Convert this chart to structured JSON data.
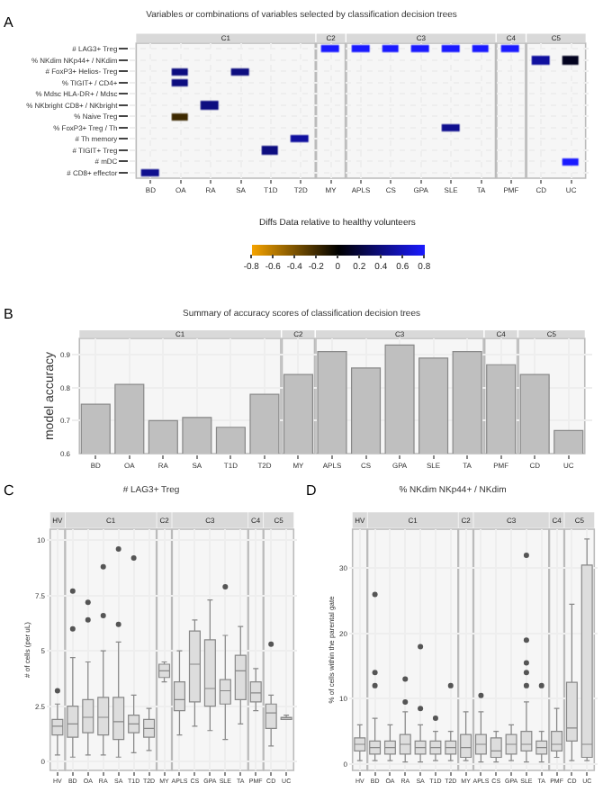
{
  "chart_data": [
    {
      "type": "heatmap",
      "title": "Variables or combinations of variables selected by classification decision trees",
      "annotations": [
        "A"
      ],
      "categories": [
        "BD",
        "OA",
        "RA",
        "SA",
        "T1D",
        "T2D",
        "MY",
        "APLS",
        "CS",
        "GPA",
        "SLE",
        "TA",
        "PMF",
        "CD",
        "UC"
      ],
      "y_categories": [
        "# LAG3+ Treg",
        "% NKdim NKp44+ / NKdim",
        "# FoxP3+ Helios- Treg",
        "% TIGIT+ / CD4+",
        "% Mdsc HLA-DR+ / Mdsc",
        "% NKbright CD8+ / NKbright",
        "% Naive Treg",
        "% FoxP3+ Treg / Th",
        "# Th memory",
        "# TIGIT+ Treg",
        "# mDC",
        "# CD8+ effector"
      ],
      "cells": [
        [
          null,
          null,
          null,
          null,
          null,
          null,
          0.8,
          0.8,
          0.8,
          0.8,
          0.8,
          0.8,
          0.8,
          null,
          null
        ],
        [
          null,
          null,
          null,
          null,
          null,
          null,
          null,
          null,
          null,
          null,
          null,
          null,
          null,
          0.5,
          0.1
        ],
        [
          null,
          0.4,
          null,
          0.4,
          null,
          null,
          null,
          null,
          null,
          null,
          null,
          null,
          null,
          null,
          null
        ],
        [
          null,
          0.4,
          null,
          null,
          null,
          null,
          null,
          null,
          null,
          null,
          null,
          null,
          null,
          null,
          null
        ],
        [
          null,
          null,
          null,
          null,
          null,
          null,
          null,
          null,
          null,
          null,
          null,
          null,
          null,
          null,
          null
        ],
        [
          null,
          null,
          0.4,
          null,
          null,
          null,
          null,
          null,
          null,
          null,
          null,
          null,
          null,
          null,
          null
        ],
        [
          null,
          -0.2,
          null,
          null,
          null,
          null,
          null,
          null,
          null,
          null,
          null,
          null,
          null,
          null,
          null
        ],
        [
          null,
          null,
          null,
          null,
          null,
          null,
          null,
          null,
          null,
          null,
          0.45,
          null,
          null,
          null,
          null
        ],
        [
          null,
          null,
          null,
          null,
          null,
          0.5,
          null,
          null,
          null,
          null,
          null,
          null,
          null,
          null,
          null
        ],
        [
          null,
          null,
          null,
          null,
          0.4,
          null,
          null,
          null,
          null,
          null,
          null,
          null,
          null,
          null,
          null
        ],
        [
          null,
          null,
          null,
          null,
          null,
          null,
          null,
          null,
          null,
          null,
          null,
          null,
          null,
          null,
          0.8
        ],
        [
          0.45,
          null,
          null,
          null,
          null,
          null,
          null,
          null,
          null,
          null,
          null,
          null,
          null,
          null,
          null
        ]
      ],
      "clabel": "Diffs Data relative to healthy volunteers",
      "clim": [
        -0.8,
        0.8
      ],
      "cticks": [
        -0.8,
        -0.6,
        -0.4,
        -0.2,
        0,
        0.2,
        0.4,
        0.6,
        0.8
      ],
      "grid": true,
      "legend": false,
      "bands": [
        {
          "axis": "x",
          "from": "BD",
          "to": "T2D",
          "label": "C1"
        },
        {
          "axis": "x",
          "from": "MY",
          "to": "MY",
          "label": "C2"
        },
        {
          "axis": "x",
          "from": "APLS",
          "to": "TA",
          "label": "C3"
        },
        {
          "axis": "x",
          "from": "PMF",
          "to": "PMF",
          "label": "C4"
        },
        {
          "axis": "x",
          "from": "CD",
          "to": "UC",
          "label": "C5"
        }
      ]
    },
    {
      "type": "bar",
      "title": "Summary of accuracy scores of classification decision trees",
      "ylabel": "model accuracy",
      "annotations": [
        "B"
      ],
      "categories": [
        "BD",
        "OA",
        "RA",
        "SA",
        "T1D",
        "T2D",
        "MY",
        "APLS",
        "CS",
        "GPA",
        "SLE",
        "TA",
        "PMF",
        "CD",
        "UC"
      ],
      "values": [
        0.75,
        0.81,
        0.7,
        0.71,
        0.68,
        0.78,
        0.84,
        0.91,
        0.86,
        0.93,
        0.89,
        0.91,
        0.87,
        0.84,
        0.67
      ],
      "color": "#bfbfbf",
      "ylim": [
        0.6,
        0.95
      ],
      "yticks": [
        0.6,
        0.7,
        0.8,
        0.9
      ],
      "grid": true,
      "legend": false,
      "bands": [
        {
          "axis": "x",
          "from": "BD",
          "to": "T2D",
          "label": "C1"
        },
        {
          "axis": "x",
          "from": "MY",
          "to": "MY",
          "label": "C2"
        },
        {
          "axis": "x",
          "from": "APLS",
          "to": "TA",
          "label": "C3"
        },
        {
          "axis": "x",
          "from": "PMF",
          "to": "PMF",
          "label": "C4"
        },
        {
          "axis": "x",
          "from": "CD",
          "to": "UC",
          "label": "C5"
        }
      ]
    },
    {
      "type": "box",
      "title": "# LAG3+ Treg",
      "ylabel": "# of cells (per uL)",
      "annotations": [
        "C"
      ],
      "categories": [
        "HV",
        "BD",
        "OA",
        "RA",
        "SA",
        "T1D",
        "T2D",
        "MY",
        "APLS",
        "CS",
        "GPA",
        "SLE",
        "TA",
        "PMF",
        "CD",
        "UC"
      ],
      "color": "#dddddd",
      "boxes": [
        {
          "low": 0.3,
          "q1": 1.2,
          "median": 1.6,
          "q3": 1.9,
          "high": 2.6,
          "outliers": [
            3.2
          ]
        },
        {
          "low": 0.2,
          "q1": 1.1,
          "median": 1.7,
          "q3": 2.5,
          "high": 4.7,
          "outliers": [
            6.0,
            7.7
          ]
        },
        {
          "low": 0.3,
          "q1": 1.3,
          "median": 2.0,
          "q3": 2.8,
          "high": 4.5,
          "outliers": [
            6.4,
            7.2
          ]
        },
        {
          "low": 0.3,
          "q1": 1.2,
          "median": 2.0,
          "q3": 2.9,
          "high": 5.0,
          "outliers": [
            6.6,
            8.8
          ]
        },
        {
          "low": 0.2,
          "q1": 1.0,
          "median": 1.8,
          "q3": 2.9,
          "high": 5.4,
          "outliers": [
            6.2,
            9.6
          ]
        },
        {
          "low": 0.4,
          "q1": 1.3,
          "median": 1.7,
          "q3": 2.1,
          "high": 3.0,
          "outliers": [
            9.2
          ]
        },
        {
          "low": 0.5,
          "q1": 1.1,
          "median": 1.5,
          "q3": 1.9,
          "high": 2.4
        },
        {
          "low": 3.6,
          "q1": 3.8,
          "median": 4.1,
          "q3": 4.4,
          "high": 4.5
        },
        {
          "low": 1.2,
          "q1": 2.3,
          "median": 2.8,
          "q3": 3.6,
          "high": 5.0
        },
        {
          "low": 1.6,
          "q1": 2.7,
          "median": 4.4,
          "q3": 5.9,
          "high": 6.4
        },
        {
          "low": 1.4,
          "q1": 2.5,
          "median": 3.3,
          "q3": 5.5,
          "high": 7.3
        },
        {
          "low": 1.0,
          "q1": 2.6,
          "median": 3.2,
          "q3": 3.7,
          "high": 5.7,
          "outliers": [
            7.9
          ]
        },
        {
          "low": 1.7,
          "q1": 2.8,
          "median": 4.1,
          "q3": 4.8,
          "high": 6.1
        },
        {
          "low": 2.3,
          "q1": 2.7,
          "median": 3.1,
          "q3": 3.6,
          "high": 4.2
        },
        {
          "low": 0.7,
          "q1": 1.5,
          "median": 2.2,
          "q3": 2.6,
          "high": 3.0,
          "outliers": [
            5.3
          ]
        },
        {
          "low": 1.9,
          "q1": 1.9,
          "median": 2.0,
          "q3": 2.0,
          "high": 2.1
        }
      ],
      "ylim": [
        -0.4,
        10.5
      ],
      "yticks": [
        0,
        2.5,
        5,
        7.5,
        10
      ],
      "grid": true,
      "legend": false,
      "bands": [
        {
          "axis": "x",
          "from": "HV",
          "to": "HV",
          "label": "HV"
        },
        {
          "axis": "x",
          "from": "BD",
          "to": "T2D",
          "label": "C1"
        },
        {
          "axis": "x",
          "from": "MY",
          "to": "MY",
          "label": "C2"
        },
        {
          "axis": "x",
          "from": "APLS",
          "to": "TA",
          "label": "C3"
        },
        {
          "axis": "x",
          "from": "PMF",
          "to": "PMF",
          "label": "C4"
        },
        {
          "axis": "x",
          "from": "CD",
          "to": "UC",
          "label": "C5"
        }
      ]
    },
    {
      "type": "box",
      "title": "% NKdim NKp44+ / NKdim",
      "ylabel": "% of cells within the parental gate",
      "annotations": [
        "D"
      ],
      "categories": [
        "HV",
        "BD",
        "OA",
        "RA",
        "SA",
        "T1D",
        "T2D",
        "MY",
        "APLS",
        "CS",
        "GPA",
        "SLE",
        "TA",
        "PMF",
        "CD",
        "UC"
      ],
      "color": "#dddddd",
      "boxes": [
        {
          "low": 0.5,
          "q1": 2,
          "median": 3,
          "q3": 4,
          "high": 6
        },
        {
          "low": 0.5,
          "q1": 1.5,
          "median": 2.5,
          "q3": 3.5,
          "high": 7,
          "outliers": [
            12,
            14,
            26
          ]
        },
        {
          "low": 0.5,
          "q1": 1.5,
          "median": 2.5,
          "q3": 3.5,
          "high": 6
        },
        {
          "low": 0.3,
          "q1": 1.5,
          "median": 3,
          "q3": 4.5,
          "high": 8,
          "outliers": [
            9.5,
            13
          ]
        },
        {
          "low": 0.3,
          "q1": 1.5,
          "median": 2.5,
          "q3": 3.5,
          "high": 6,
          "outliers": [
            8.5,
            18
          ]
        },
        {
          "low": 0.5,
          "q1": 1.5,
          "median": 2.5,
          "q3": 3.5,
          "high": 5,
          "outliers": [
            7
          ]
        },
        {
          "low": 0.5,
          "q1": 1.5,
          "median": 2.5,
          "q3": 3.5,
          "high": 5,
          "outliers": [
            12
          ]
        },
        {
          "low": 0.5,
          "q1": 1,
          "median": 2.5,
          "q3": 4.5,
          "high": 8
        },
        {
          "low": 0.3,
          "q1": 1.5,
          "median": 3,
          "q3": 4.5,
          "high": 8,
          "outliers": [
            10.5
          ]
        },
        {
          "low": 0.3,
          "q1": 1,
          "median": 2,
          "q3": 4,
          "high": 5
        },
        {
          "low": 0.5,
          "q1": 1.5,
          "median": 3,
          "q3": 4.5,
          "high": 6
        },
        {
          "low": 0.3,
          "q1": 2,
          "median": 3,
          "q3": 5,
          "high": 9.5,
          "outliers": [
            12,
            14,
            15.5,
            19,
            32
          ]
        },
        {
          "low": 0.3,
          "q1": 1.5,
          "median": 2.5,
          "q3": 3.5,
          "high": 5,
          "outliers": [
            12
          ]
        },
        {
          "low": 1,
          "q1": 2,
          "median": 3,
          "q3": 5,
          "high": 8.5
        },
        {
          "low": 0.5,
          "q1": 3.5,
          "median": 5.5,
          "q3": 12.5,
          "high": 24.5
        },
        {
          "low": 0.5,
          "q1": 1,
          "median": 3,
          "q3": 30.5,
          "high": 34.5
        }
      ],
      "ylim": [
        -1,
        36
      ],
      "yticks": [
        0,
        10,
        20,
        30
      ],
      "grid": true,
      "legend": false,
      "bands": [
        {
          "axis": "x",
          "from": "HV",
          "to": "HV",
          "label": "HV"
        },
        {
          "axis": "x",
          "from": "BD",
          "to": "T2D",
          "label": "C1"
        },
        {
          "axis": "x",
          "from": "MY",
          "to": "MY",
          "label": "C2"
        },
        {
          "axis": "x",
          "from": "APLS",
          "to": "TA",
          "label": "C3"
        },
        {
          "axis": "x",
          "from": "PMF",
          "to": "PMF",
          "label": "C4"
        },
        {
          "axis": "x",
          "from": "CD",
          "to": "UC",
          "label": "C5"
        }
      ]
    }
  ]
}
